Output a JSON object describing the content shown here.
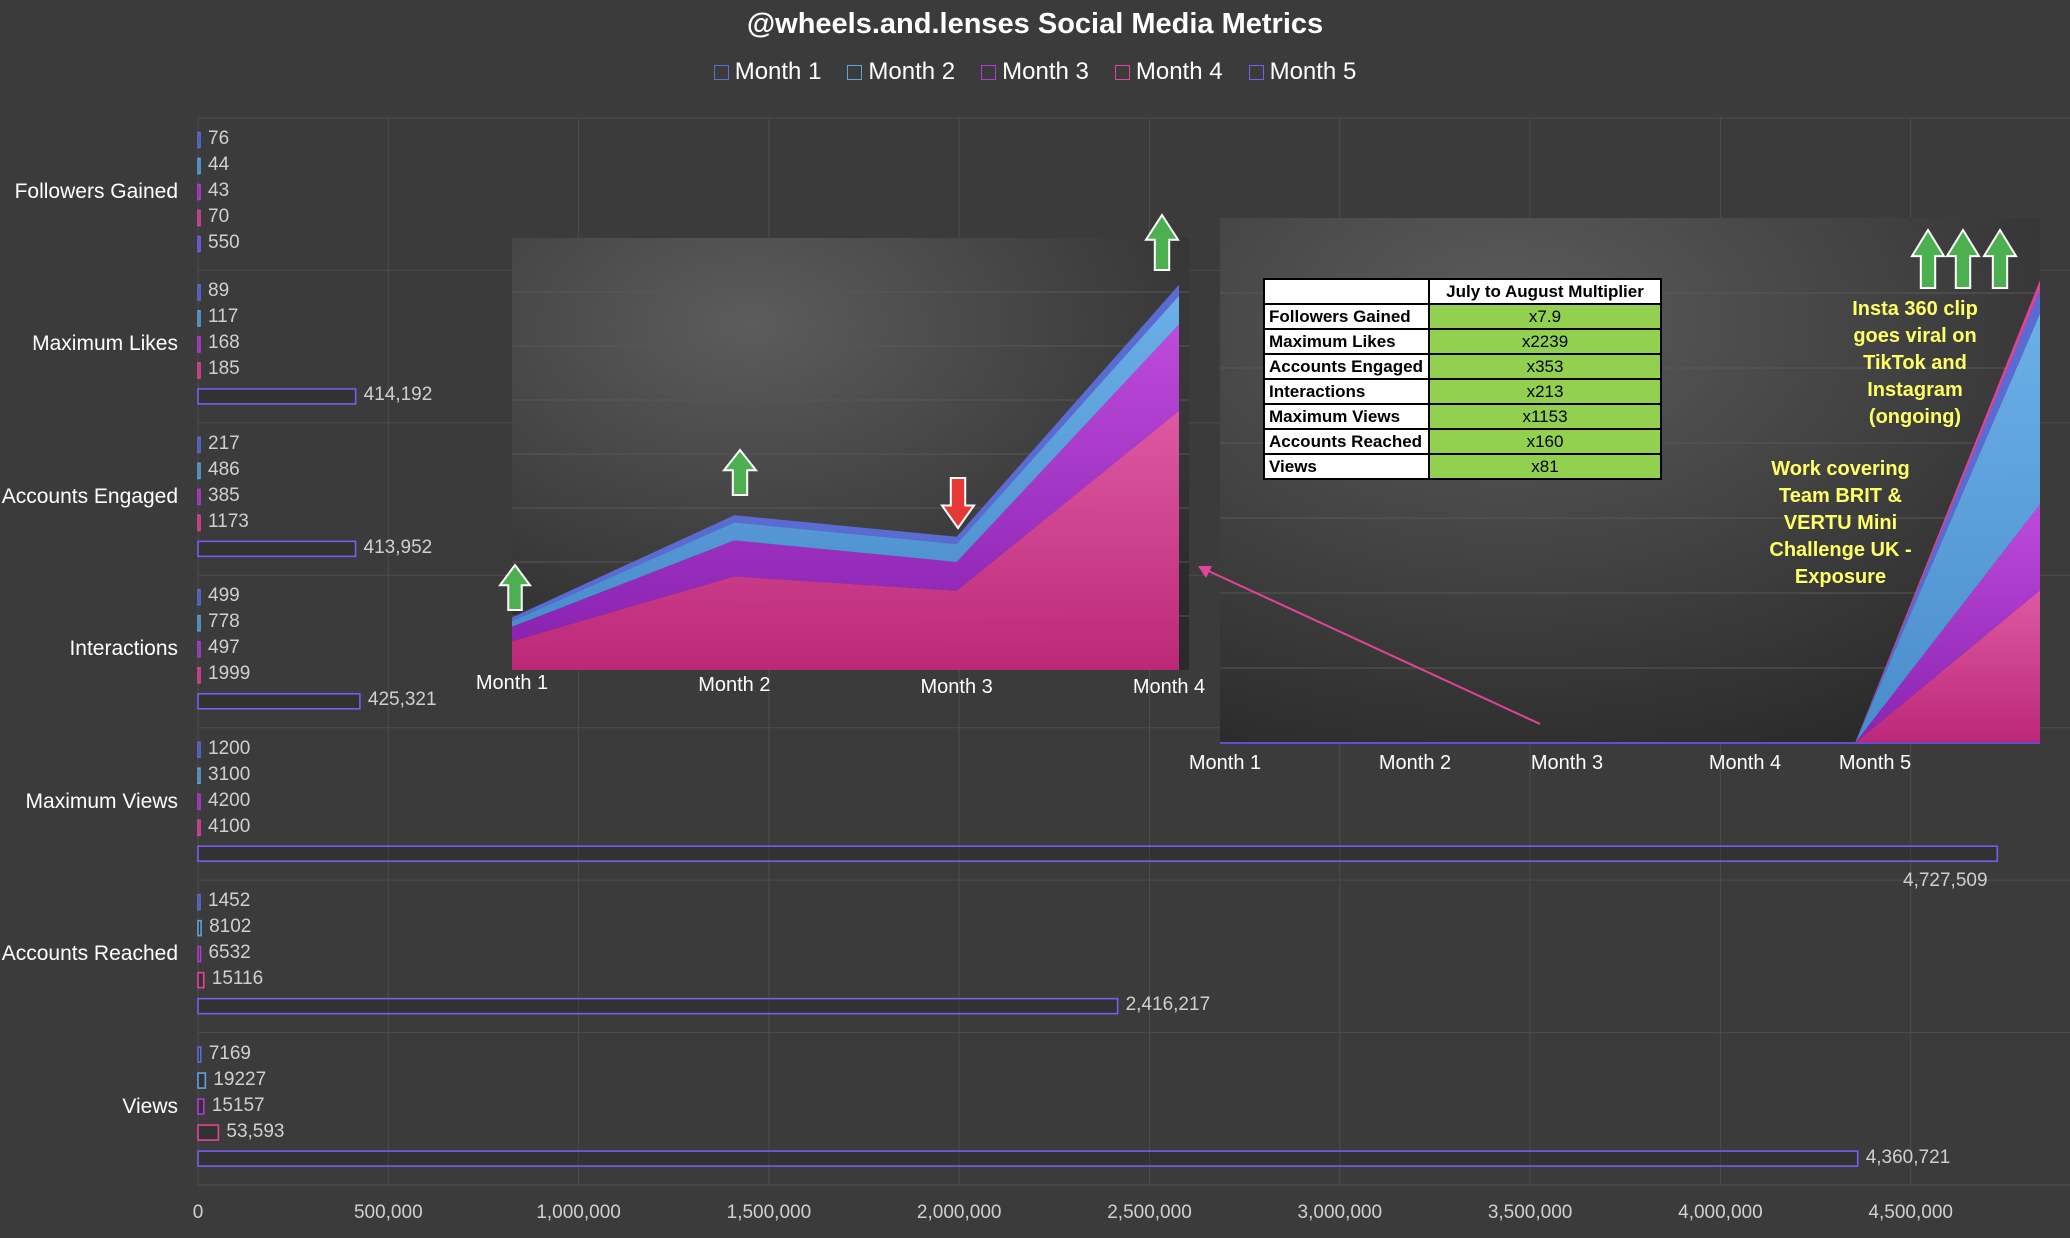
{
  "colors": {
    "month1": "#5b6dd9",
    "month2": "#5aa4e0",
    "month3": "#b23bd6",
    "month4": "#e2439b",
    "month5": "#7a5cf0",
    "up_arrow": "#4caf50",
    "down_arrow": "#e53935",
    "note_text": "#ffff66",
    "table_green": "#92d050"
  },
  "chart_data": [
    {
      "type": "bar",
      "orientation": "horizontal",
      "title": "@wheels.and.lenses Social Media Metrics",
      "legend": [
        "Month 1",
        "Month 2",
        "Month 3",
        "Month 4",
        "Month 5"
      ],
      "legend_position": "top",
      "categories": [
        "Followers Gained",
        "Maximum Likes",
        "Accounts Engaged",
        "Interactions",
        "Maximum Views",
        "Accounts Reached",
        "Views"
      ],
      "series": [
        {
          "name": "Month 1",
          "values": [
            76,
            89,
            217,
            499,
            1200,
            1452,
            7169
          ],
          "labels": [
            "76",
            "89",
            "217",
            "499",
            "1200",
            "1452",
            "7169"
          ]
        },
        {
          "name": "Month 2",
          "values": [
            44,
            117,
            486,
            778,
            3100,
            8102,
            19227
          ],
          "labels": [
            "44",
            "117",
            "486",
            "778",
            "3100",
            "8102",
            "19227"
          ]
        },
        {
          "name": "Month 3",
          "values": [
            43,
            168,
            385,
            497,
            4200,
            6532,
            15157
          ],
          "labels": [
            "43",
            "168",
            "385",
            "497",
            "4200",
            "6532",
            "15157"
          ]
        },
        {
          "name": "Month 4",
          "values": [
            70,
            185,
            1173,
            1999,
            4100,
            15116,
            53593
          ],
          "labels": [
            "70",
            "185",
            "1173",
            "1999",
            "4100",
            "15116",
            "53,593"
          ]
        },
        {
          "name": "Month 5",
          "values": [
            550,
            414192,
            413952,
            425321,
            4727509,
            2416217,
            4360721
          ],
          "labels": [
            "550",
            "414,192",
            "413,952",
            "425,321",
            "4,727,509",
            "2,416,217",
            "4,360,721"
          ]
        }
      ],
      "x_ticks": [
        "0",
        "500,000",
        "1,000,000",
        "1,500,000",
        "2,000,000",
        "2,500,000",
        "3,000,000",
        "3,500,000",
        "4,000,000",
        "4,500,000"
      ],
      "xlim": [
        0,
        5000000
      ],
      "grid": true
    },
    {
      "type": "area",
      "stacked": true,
      "categories": [
        "Month 1",
        "Month 2",
        "Month 3",
        "Month 4"
      ],
      "series": [
        {
          "name": "Month 4",
          "values": [
            4,
            13,
            11,
            36
          ]
        },
        {
          "name": "Month 3",
          "values": [
            2,
            5,
            4,
            12
          ]
        },
        {
          "name": "Month 2",
          "values": [
            0.8,
            2.5,
            2.5,
            4
          ]
        },
        {
          "name": "Month 1",
          "values": [
            0.5,
            1,
            1,
            1.5
          ]
        }
      ],
      "annotations": [
        "up arrow at Month 1",
        "up arrow at Month 2",
        "down arrow at Month 3",
        "up arrow at Month 4"
      ]
    },
    {
      "type": "area",
      "stacked": true,
      "categories": [
        "Month 1",
        "Month 2",
        "Month 3",
        "Month 4",
        "Month 5"
      ],
      "series": [
        {
          "name": "Month 4",
          "values": [
            0,
            0,
            0,
            0,
            32
          ]
        },
        {
          "name": "Month 3",
          "values": [
            0,
            0,
            0,
            0,
            18
          ]
        },
        {
          "name": "Month 2",
          "values": [
            0,
            0,
            0,
            0,
            40
          ]
        },
        {
          "name": "Month 1",
          "values": [
            0,
            0,
            0,
            0,
            5
          ]
        },
        {
          "name": "Month 5",
          "values": [
            0,
            0,
            0,
            0,
            2
          ]
        }
      ],
      "annotations": [
        "three up arrows at Month 5"
      ]
    },
    {
      "type": "table",
      "header": [
        "",
        "July to August Multiplier"
      ],
      "rows": [
        [
          "Followers Gained",
          "x7.9"
        ],
        [
          "Maximum Likes",
          "x2239"
        ],
        [
          "Accounts Engaged",
          "x353"
        ],
        [
          "Interactions",
          "x213"
        ],
        [
          "Maximum Views",
          "x1153"
        ],
        [
          "Accounts Reached",
          "x160"
        ],
        [
          "Views",
          "x81"
        ]
      ]
    }
  ],
  "notes": {
    "viral": "Insta 360 clip goes viral on TikTok and Instagram (ongoing)",
    "viral_lines": [
      "Insta 360 clip",
      "goes viral on",
      "TikTok and",
      "Instagram",
      "(ongoing)"
    ],
    "work_lines": [
      "Work covering",
      "Team BRIT &",
      "VERTU Mini",
      "Challenge UK -",
      "Exposure"
    ]
  }
}
